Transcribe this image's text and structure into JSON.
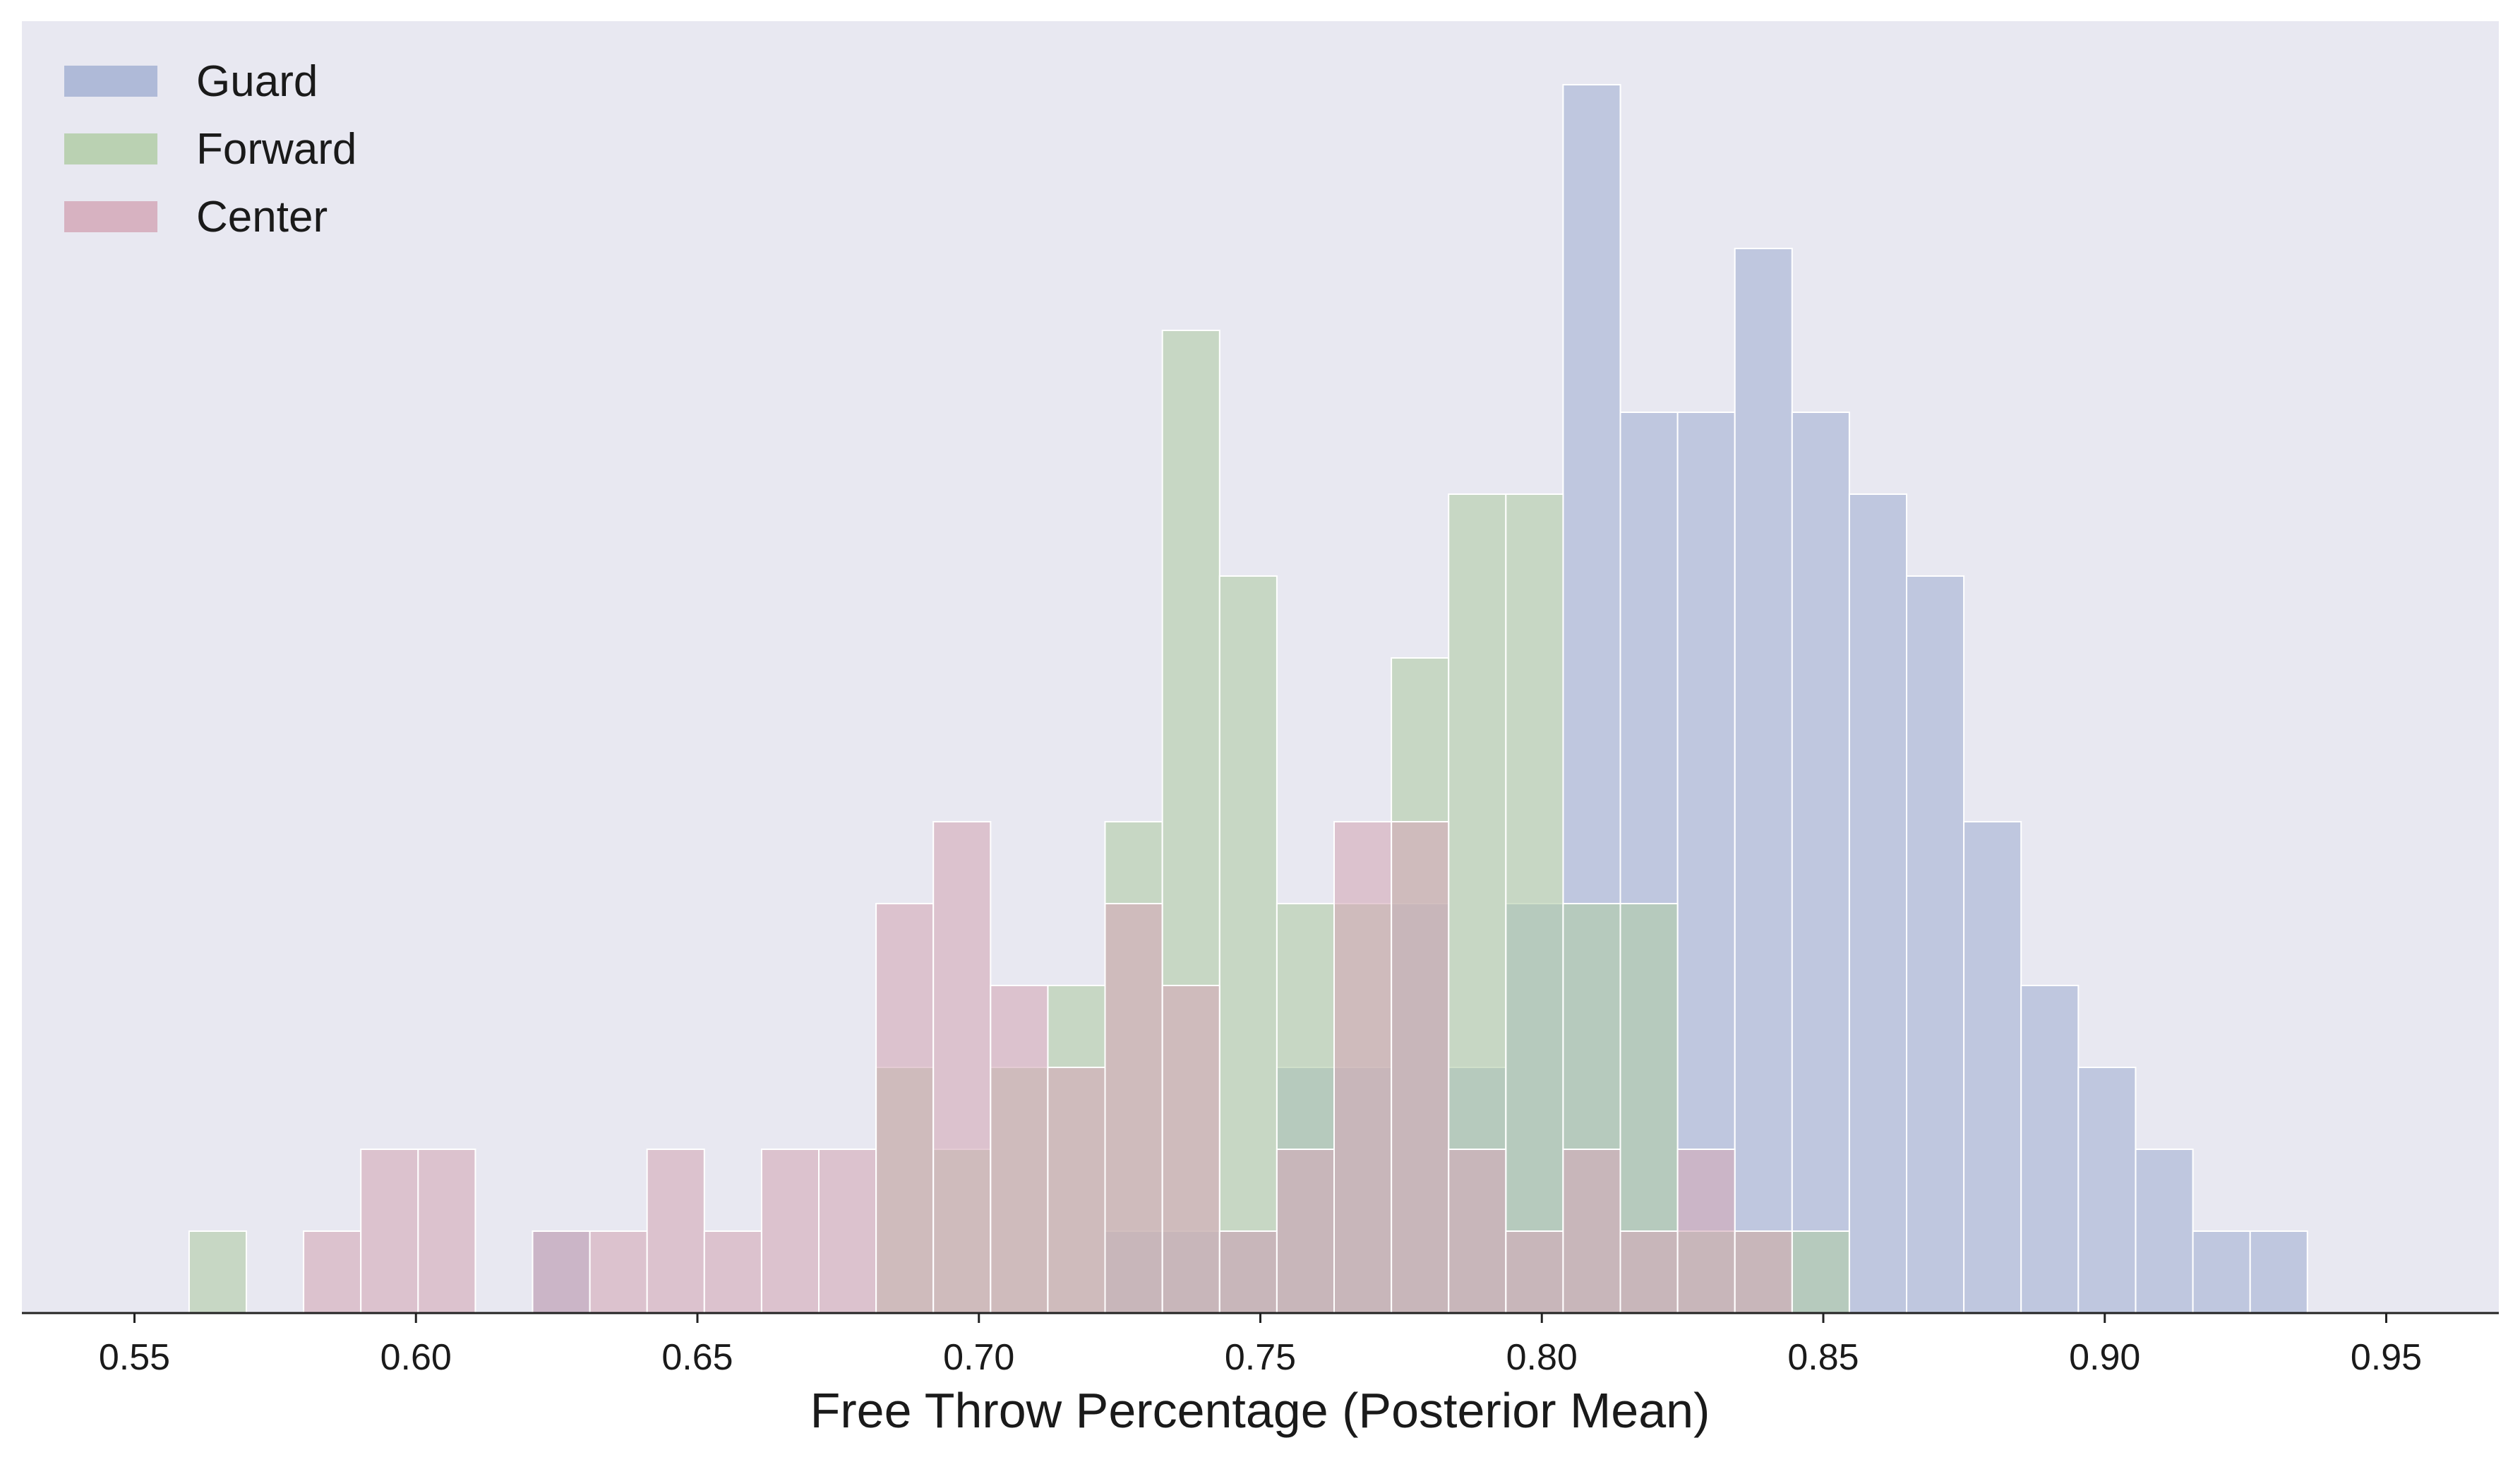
{
  "chart_data": {
    "type": "bar",
    "subtype": "overlaid-histogram",
    "title": "",
    "xlabel": "Free Throw Percentage (Posterior Mean)",
    "ylabel": "",
    "xlim": [
      0.53,
      0.97
    ],
    "ylim": [
      0,
      15
    ],
    "x_ticks": [
      "0.55",
      "0.60",
      "0.65",
      "0.70",
      "0.75",
      "0.80",
      "0.85",
      "0.90",
      "0.95"
    ],
    "y_ticks_visible": false,
    "grid": false,
    "legend_position": "top-left",
    "bin_start": 0.5597,
    "bin_width": 0.01017,
    "series": [
      {
        "name": "Guard",
        "color": "#a4b1d3",
        "counts": [
          0,
          0,
          0,
          0,
          0,
          0,
          1,
          0,
          0,
          0,
          0,
          0,
          0,
          0,
          0,
          0,
          1,
          1,
          1,
          3,
          3,
          5,
          3,
          5,
          15,
          11,
          11,
          13,
          11,
          10,
          9,
          6,
          4,
          3,
          2,
          1,
          1
        ]
      },
      {
        "name": "Forward",
        "color": "#b1cca7",
        "counts": [
          1,
          0,
          0,
          0,
          0,
          0,
          0,
          0,
          0,
          0,
          0,
          0,
          3,
          2,
          3,
          4,
          6,
          12,
          9,
          5,
          5,
          8,
          10,
          10,
          5,
          5,
          1,
          1,
          1,
          0,
          0,
          0,
          0,
          0,
          0,
          0,
          0
        ]
      },
      {
        "name": "Center",
        "color": "#d4a8b8",
        "counts": [
          0,
          0,
          1,
          2,
          2,
          0,
          1,
          1,
          2,
          1,
          2,
          2,
          5,
          6,
          4,
          3,
          5,
          4,
          1,
          2,
          6,
          6,
          2,
          1,
          2,
          1,
          2,
          1,
          0,
          0,
          0,
          0,
          0,
          0,
          0,
          0,
          0
        ]
      }
    ]
  }
}
